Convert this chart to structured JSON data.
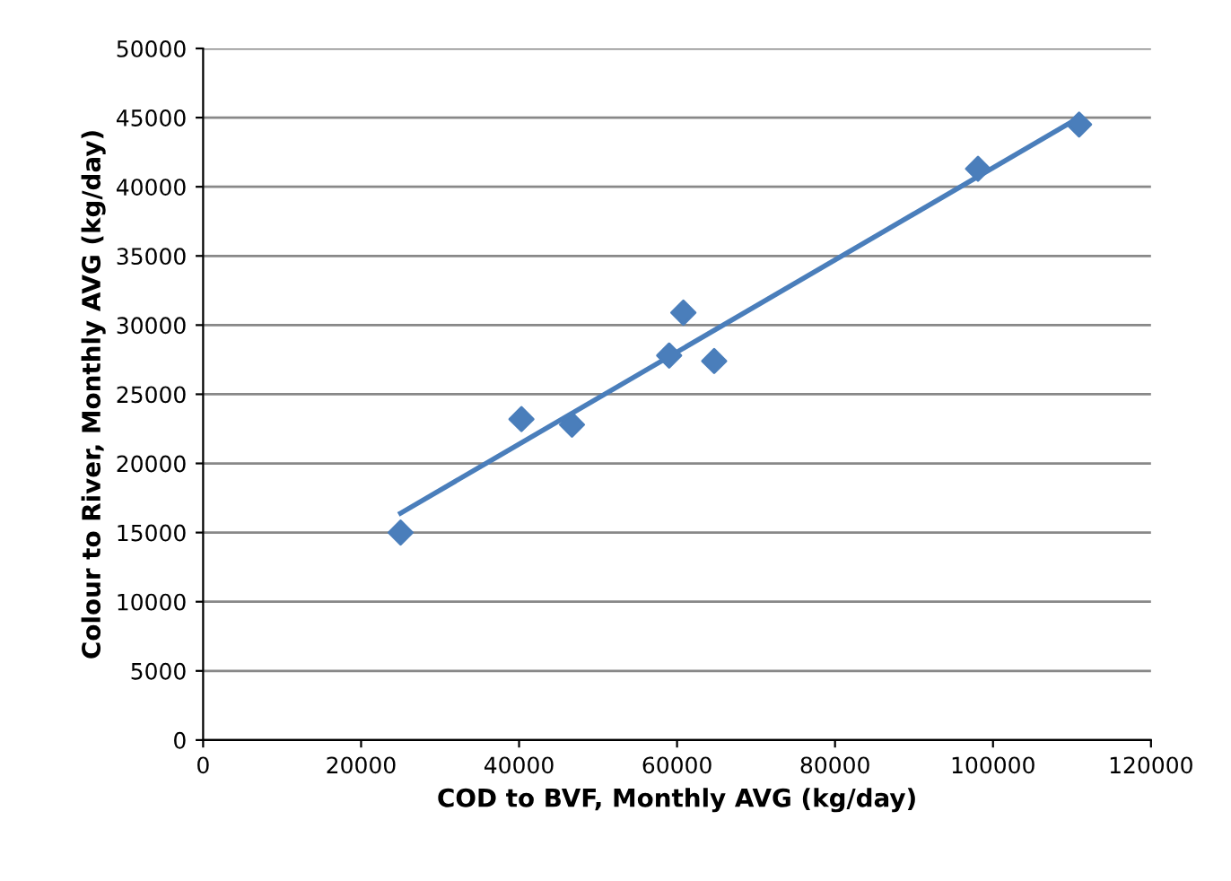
{
  "chart_data": {
    "type": "scatter",
    "xlabel": "COD to BVF, Monthly AVG (kg/day)",
    "ylabel": "Colour to River, Monthly AVG (kg/day)",
    "series": [
      {
        "color": "#4a7ebb",
        "marker": "diamond",
        "x": [
          25000,
          40300,
          46700,
          59000,
          60800,
          64700,
          98100,
          110900
        ],
        "values": [
          15000,
          23200,
          22800,
          27800,
          30900,
          27400,
          41300,
          44500
        ]
      },
      {
        "type": "line",
        "color": "#4a7ebb",
        "marker": "none",
        "x": [
          25000,
          110900
        ],
        "values": [
          16400,
          45000
        ]
      }
    ],
    "xlim": [
      0,
      120000
    ],
    "ylim": [
      0,
      50000
    ],
    "xticks": [
      0,
      20000,
      40000,
      60000,
      80000,
      100000,
      120000
    ],
    "yticks": [
      0,
      5000,
      10000,
      15000,
      20000,
      25000,
      30000,
      35000,
      40000,
      45000,
      50000
    ],
    "grid": "y",
    "legend": false
  }
}
